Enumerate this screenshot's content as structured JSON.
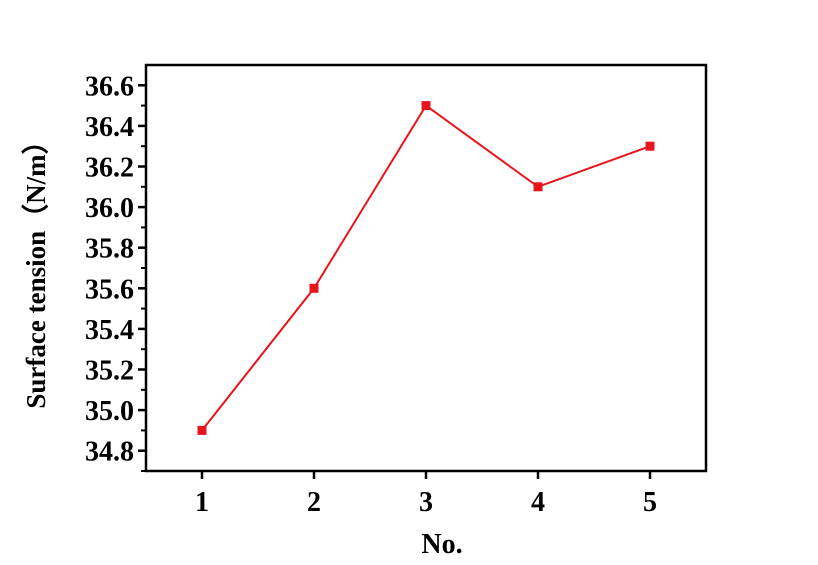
{
  "chart_data": {
    "type": "line",
    "title": "",
    "xlabel": "No.",
    "ylabel": "Surface tension（N/m）",
    "x": [
      1,
      2,
      3,
      4,
      5
    ],
    "series": [
      {
        "values": [
          34.9,
          35.6,
          36.5,
          36.1,
          36.3
        ],
        "color": "#e8141b",
        "marker": "square"
      }
    ],
    "xlim": [
      0.5,
      5.5
    ],
    "ylim": [
      34.7,
      36.7
    ],
    "xticks": [
      "1",
      "2",
      "3",
      "4",
      "5"
    ],
    "yticks": [
      "34.8",
      "35.0",
      "35.2",
      "35.4",
      "35.6",
      "35.8",
      "36.0",
      "36.2",
      "36.4",
      "36.6"
    ],
    "grid": false,
    "legend": "none"
  }
}
